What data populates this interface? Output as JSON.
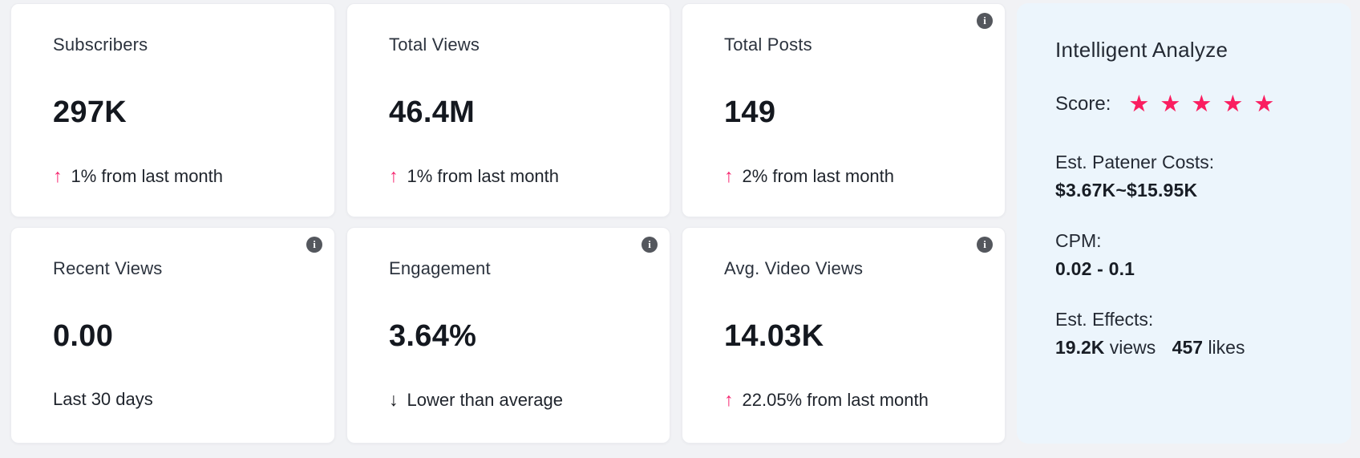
{
  "theme": {
    "page_bg": "#f1f2f5",
    "card_bg": "#ffffff",
    "panel_bg": "#ecf5fc",
    "accent_pink": "#f5246e",
    "star_pink": "#fa1e60",
    "text_dark": "#14181f"
  },
  "info_icon_glyph": "i",
  "cards": [
    {
      "label": "Subscribers",
      "value": "297K",
      "delta_arrow": "↑",
      "delta_text": "1% from last month"
    },
    {
      "label": "Total Views",
      "value": "46.4M",
      "delta_arrow": "↑",
      "delta_text": "1% from last month"
    },
    {
      "label": "Total Posts",
      "value": "149",
      "delta_arrow": "↑",
      "delta_text": "2% from last month"
    },
    {
      "label": "Recent Views",
      "value": "0.00",
      "delta_arrow": "",
      "delta_text": "Last 30 days"
    },
    {
      "label": "Engagement",
      "value": "3.64%",
      "delta_arrow": "↓",
      "delta_text": "Lower than average"
    },
    {
      "label": "Avg. Video Views",
      "value": "14.03K",
      "delta_arrow": "↑",
      "delta_text": "22.05% from last month"
    }
  ],
  "panel": {
    "title": "Intelligent Analyze",
    "score_label": "Score:",
    "stars": "★★★★★",
    "patener_label": "Est. Patener Costs:",
    "patener_value": "$3.67K~$15.95K",
    "cpm_label": "CPM:",
    "cpm_value": "0.02 - 0.1",
    "effects_label": "Est. Effects:",
    "effects_views_value": "19.2K",
    "effects_views_label": "views",
    "effects_likes_value": "457",
    "effects_likes_label": "likes"
  }
}
